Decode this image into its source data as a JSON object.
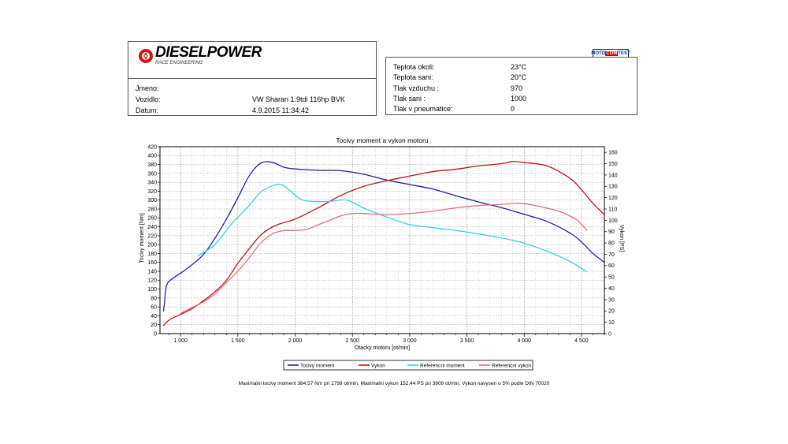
{
  "header": {
    "brand": "DIESELPOWER",
    "brand_sub": "RACE ENGINEERING",
    "badge": {
      "a": "MOTO",
      "b": "COM",
      "c": "TEST"
    }
  },
  "vehicle": {
    "name_label": "Jmeno:",
    "name_value": "",
    "vehicle_label": "Vozidlo:",
    "vehicle_value": "VW Sharan 1.9tdi 116hp BVK",
    "date_label": "Datum:",
    "date_value": "4.9.2015 11:34:42"
  },
  "conditions": [
    {
      "label": "Teplota okoli:",
      "value": "23°C"
    },
    {
      "label": "Teplota sani:",
      "value": "20°C"
    },
    {
      "label": "Tlak vzduchu :",
      "value": "970"
    },
    {
      "label": "Tlak sani :",
      "value": "1000"
    },
    {
      "label": "Tlak v pneumatice:",
      "value": "0"
    }
  ],
  "summary": "Maximalni tocivy moment 384,57 Nm pri 1799 ot/min,  Maximalni vykon 152,44 PS pri 3909 ot/min,  Vykon navysen o 5% podle DIN 70020",
  "chart_data": {
    "type": "line",
    "title": "Tocivy moment a vykon motoru",
    "xlabel": "Otacky motoru [ot/min]",
    "ylabel": "Tocivy moment [Nm]",
    "y2label": "Vykon [PS]",
    "xlim": [
      820,
      4700
    ],
    "ylim": [
      0,
      420
    ],
    "y2lim": [
      0,
      165
    ],
    "xticks": [
      1000,
      1500,
      2000,
      2500,
      3000,
      3500,
      4000,
      4500
    ],
    "xtick_labels": [
      "1 000",
      "1 500",
      "2 000",
      "2 500",
      "3 000",
      "3 500",
      "4 000",
      "4 500"
    ],
    "yticks": [
      0,
      20,
      40,
      60,
      80,
      100,
      120,
      140,
      160,
      180,
      200,
      220,
      240,
      260,
      280,
      300,
      320,
      340,
      360,
      380,
      400,
      420
    ],
    "y2ticks": [
      0,
      10,
      20,
      30,
      40,
      50,
      60,
      70,
      80,
      90,
      100,
      110,
      120,
      130,
      140,
      150,
      160
    ],
    "grid": true,
    "legend_position": "bottom",
    "series": [
      {
        "name": "Tocivy moment",
        "axis": "left",
        "color": "#1f1f9e",
        "x": [
          850,
          860,
          880,
          950,
          1050,
          1200,
          1350,
          1500,
          1600,
          1700,
          1800,
          1900,
          2000,
          2200,
          2400,
          2600,
          2800,
          3000,
          3200,
          3400,
          3600,
          3800,
          4000,
          4200,
          4400,
          4500,
          4600,
          4700
        ],
        "y": [
          50,
          70,
          110,
          127,
          145,
          178,
          235,
          305,
          355,
          383,
          385,
          374,
          370,
          367,
          366,
          358,
          345,
          335,
          325,
          310,
          296,
          283,
          268,
          252,
          226,
          206,
          180,
          160
        ]
      },
      {
        "name": "Vykon",
        "axis": "right",
        "color": "#c0141a",
        "x": [
          850,
          900,
          1000,
          1100,
          1200,
          1300,
          1400,
          1500,
          1600,
          1700,
          1800,
          1900,
          2000,
          2200,
          2400,
          2600,
          2800,
          3000,
          3200,
          3400,
          3600,
          3800,
          3900,
          4000,
          4200,
          4400,
          4500,
          4600,
          4700
        ],
        "y": [
          7,
          12,
          17,
          22,
          29,
          37,
          47,
          62,
          75,
          87,
          94,
          98,
          101,
          111,
          122,
          130,
          135,
          139,
          143,
          145,
          148,
          150,
          152,
          151,
          148,
          137,
          127,
          115,
          105
        ]
      },
      {
        "name": "Referencni moment",
        "axis": "left",
        "color": "#38d2dc",
        "x": [
          1150,
          1300,
          1450,
          1600,
          1700,
          1800,
          1880,
          1950,
          2050,
          2150,
          2300,
          2450,
          2600,
          2800,
          3000,
          3200,
          3400,
          3600,
          3800,
          4000,
          4200,
          4400,
          4550
        ],
        "y": [
          175,
          200,
          248,
          288,
          318,
          332,
          335,
          322,
          302,
          297,
          297,
          300,
          282,
          262,
          245,
          238,
          232,
          224,
          215,
          203,
          185,
          162,
          138
        ]
      },
      {
        "name": "Referencni vykon",
        "axis": "right",
        "color": "#e0707a",
        "x": [
          1000,
          1100,
          1200,
          1300,
          1400,
          1500,
          1600,
          1700,
          1800,
          1900,
          2000,
          2100,
          2200,
          2300,
          2400,
          2500,
          2600,
          2800,
          3000,
          3200,
          3400,
          3600,
          3800,
          3950,
          4100,
          4300,
          4450,
          4550
        ],
        "y": [
          18,
          23,
          28,
          35,
          45,
          55,
          67,
          80,
          88,
          91,
          91,
          92,
          96,
          100,
          104,
          106,
          106,
          105,
          106,
          108,
          111,
          113,
          114,
          115,
          113,
          108,
          101,
          91
        ]
      }
    ]
  }
}
